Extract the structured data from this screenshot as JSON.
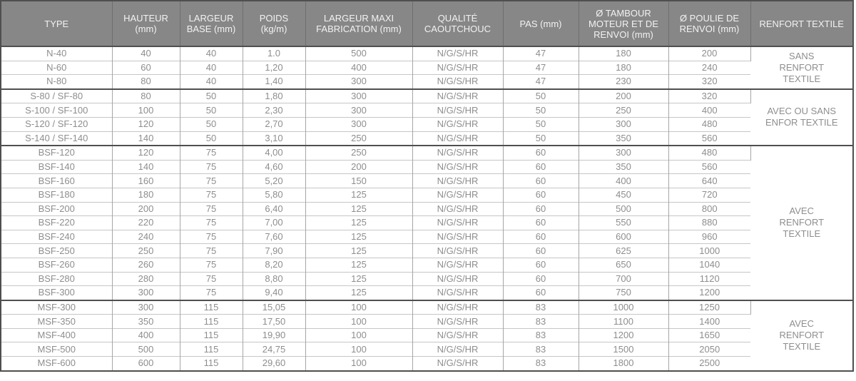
{
  "table": {
    "columns": [
      {
        "id": "type",
        "label": "TYPE"
      },
      {
        "id": "hauteur",
        "label": "HAUTEUR\n(mm)"
      },
      {
        "id": "largeur_base",
        "label": "LARGEUR\nBASE (mm)"
      },
      {
        "id": "poids",
        "label": "POIDS\n(kg/m)"
      },
      {
        "id": "largeur_maxi",
        "label": "LARGEUR MAXI\nFABRICATION (mm)"
      },
      {
        "id": "qualite",
        "label": "QUALITÉ\nCAOUTCHOUC"
      },
      {
        "id": "pas",
        "label": "PAS (mm)"
      },
      {
        "id": "tambour",
        "label": "Ø TAMBOUR\nMOTEUR ET DE\nRENVOI (mm)"
      },
      {
        "id": "poulie",
        "label": "Ø POULIE DE\nRENVOI (mm)"
      },
      {
        "id": "renfort",
        "label": "RENFORT TEXTILE"
      }
    ],
    "groups": [
      {
        "renfort_label": "SANS\nRENFORT\nTEXTILE",
        "rows": [
          [
            "N-40",
            "40",
            "40",
            "1.0",
            "500",
            "N/G/S/HR",
            "47",
            "180",
            "200"
          ],
          [
            "N-60",
            "60",
            "40",
            "1,20",
            "400",
            "N/G/S/HR",
            "47",
            "180",
            "240"
          ],
          [
            "N-80",
            "80",
            "40",
            "1,40",
            "300",
            "N/G/S/HR",
            "47",
            "230",
            "320"
          ]
        ]
      },
      {
        "renfort_label": "AVEC OU SANS\nENFOR TEXTILE",
        "rows": [
          [
            "S-80 / SF-80",
            "80",
            "50",
            "1,80",
            "300",
            "N/G/S/HR",
            "50",
            "200",
            "320"
          ],
          [
            "S-100 / SF-100",
            "100",
            "50",
            "2,30",
            "300",
            "N/G/S/HR",
            "50",
            "250",
            "400"
          ],
          [
            "S-120 / SF-120",
            "120",
            "50",
            "2,70",
            "300",
            "N/G/S/HR",
            "50",
            "300",
            "480"
          ],
          [
            "S-140 / SF-140",
            "140",
            "50",
            "3,10",
            "250",
            "N/G/S/HR",
            "50",
            "350",
            "560"
          ]
        ]
      },
      {
        "renfort_label": "AVEC\nRENFORT\nTEXTILE",
        "rows": [
          [
            "BSF-120",
            "120",
            "75",
            "4,00",
            "250",
            "N/G/S/HR",
            "60",
            "300",
            "480"
          ],
          [
            "BSF-140",
            "140",
            "75",
            "4,60",
            "200",
            "N/G/S/HR",
            "60",
            "350",
            "560"
          ],
          [
            "BSF-160",
            "160",
            "75",
            "5,20",
            "150",
            "N/G/S/HR",
            "60",
            "400",
            "640"
          ],
          [
            "BSF-180",
            "180",
            "75",
            "5,80",
            "125",
            "N/G/S/HR",
            "60",
            "450",
            "720"
          ],
          [
            "BSF-200",
            "200",
            "75",
            "6,40",
            "125",
            "N/G/S/HR",
            "60",
            "500",
            "800"
          ],
          [
            "BSF-220",
            "220",
            "75",
            "7,00",
            "125",
            "N/G/S/HR",
            "60",
            "550",
            "880"
          ],
          [
            "BSF-240",
            "240",
            "75",
            "7,60",
            "125",
            "N/G/S/HR",
            "60",
            "600",
            "960"
          ],
          [
            "BSF-250",
            "250",
            "75",
            "7,90",
            "125",
            "N/G/S/HR",
            "60",
            "625",
            "1000"
          ],
          [
            "BSF-260",
            "260",
            "75",
            "8,20",
            "125",
            "N/G/S/HR",
            "60",
            "650",
            "1040"
          ],
          [
            "BSF-280",
            "280",
            "75",
            "8,80",
            "125",
            "N/G/S/HR",
            "60",
            "700",
            "1120"
          ],
          [
            "BSF-300",
            "300",
            "75",
            "9,40",
            "125",
            "N/G/S/HR",
            "60",
            "750",
            "1200"
          ]
        ]
      },
      {
        "renfort_label": "AVEC\nRENFORT\nTEXTILE",
        "rows": [
          [
            "MSF-300",
            "300",
            "115",
            "15,05",
            "100",
            "N/G/S/HR",
            "83",
            "1000",
            "1250"
          ],
          [
            "MSF-350",
            "350",
            "115",
            "17,50",
            "100",
            "N/G/S/HR",
            "83",
            "1100",
            "1400"
          ],
          [
            "MSF-400",
            "400",
            "115",
            "19,90",
            "100",
            "N/G/S/HR",
            "83",
            "1200",
            "1650"
          ],
          [
            "MSF-500",
            "500",
            "115",
            "24,75",
            "100",
            "N/G/S/HR",
            "83",
            "1500",
            "2050"
          ],
          [
            "MSF-600",
            "600",
            "115",
            "29,60",
            "100",
            "N/G/S/HR",
            "83",
            "1800",
            "2500"
          ]
        ]
      }
    ]
  },
  "colors": {
    "header_bg": "#878787",
    "header_text": "#f2f2f2",
    "header_sep": "#6e6e6e",
    "body_text": "#8e8e8e",
    "row_border": "#c6c6c6",
    "col_border": "#a6a6a6",
    "block_border": "#4f4f4f"
  }
}
